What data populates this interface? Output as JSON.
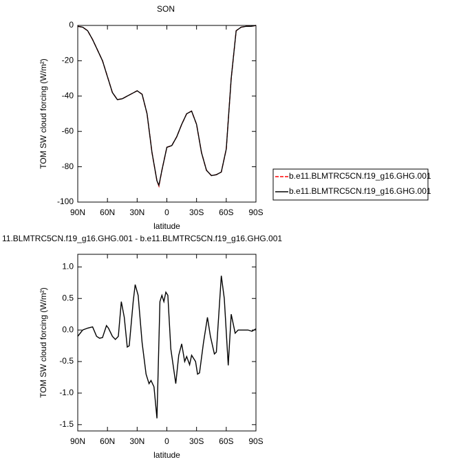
{
  "chart_data": [
    {
      "type": "line",
      "title": "SON",
      "xlabel": "latitude",
      "ylabel": "TOM SW cloud forcing (W/m²)",
      "x": [
        90,
        85,
        80,
        75,
        70,
        65,
        60,
        55,
        50,
        45,
        40,
        35,
        30,
        25,
        20,
        15,
        10,
        8,
        5,
        0,
        -5,
        -10,
        -15,
        -20,
        -25,
        -30,
        -35,
        -40,
        -45,
        -50,
        -55,
        -60,
        -65,
        -70,
        -75,
        -80,
        -85,
        -90
      ],
      "series": [
        {
          "name": "b.e11.BLMTRC5CN.f19_g16.GHG.001",
          "color": "#ff0000",
          "dashed": true,
          "values": [
            -0.5,
            -1,
            -3,
            -8,
            -14,
            -20,
            -29,
            -38,
            -42,
            -41.5,
            -40,
            -38.5,
            -37,
            -39,
            -50,
            -72,
            -88,
            -91,
            -82,
            -69,
            -68,
            -63,
            -56,
            -50,
            -48.5,
            -56,
            -72,
            -82,
            -85,
            -84.5,
            -83,
            -70,
            -30,
            -3,
            -1,
            -0.5,
            -0.5,
            0
          ]
        },
        {
          "name": "b.e11.BLMTRC5CN.f19_g16.GHG.001",
          "color": "#000000",
          "dashed": false,
          "values": [
            -0.5,
            -1,
            -3,
            -8,
            -14,
            -20,
            -29,
            -38,
            -42,
            -41.5,
            -40,
            -38.5,
            -37,
            -39,
            -50,
            -72,
            -88,
            -90.5,
            -82,
            -69,
            -68,
            -63,
            -56,
            -50,
            -48.5,
            -56,
            -72,
            -82,
            -85,
            -84.5,
            -83,
            -70,
            -30,
            -3,
            -1,
            -0.5,
            -0.5,
            0
          ]
        }
      ],
      "xlim": [
        90,
        -90
      ],
      "xticks": [
        {
          "value": 90,
          "label": "90N"
        },
        {
          "value": 60,
          "label": "60N"
        },
        {
          "value": 30,
          "label": "30N"
        },
        0,
        {
          "value": -30,
          "label": "30S"
        },
        {
          "value": -60,
          "label": "60S"
        },
        {
          "value": -90,
          "label": "90S"
        }
      ],
      "ylim": [
        -100,
        0
      ],
      "yticks": [
        0,
        -20,
        -40,
        -60,
        -80,
        -100
      ],
      "legend": "right"
    },
    {
      "type": "line",
      "title": "11.BLMTRC5CN.f19_g16.GHG.001 - b.e11.BLMTRC5CN.f19_g16.GHG.001",
      "xlabel": "latitude",
      "ylabel": "TOM SW cloud forcing (W/m²)",
      "x": [
        90,
        85,
        80,
        75,
        71,
        68,
        65,
        61,
        59,
        55,
        52,
        49,
        46,
        43,
        40,
        38,
        34,
        32,
        29,
        25,
        21,
        18,
        16,
        13,
        10,
        7,
        5,
        3,
        1,
        -1,
        -4,
        -9,
        -12,
        -15,
        -18,
        -20,
        -23,
        -25,
        -29,
        -31,
        -33,
        -37,
        -41,
        -44,
        -48,
        -50,
        -55,
        -58,
        -62,
        -65,
        -69,
        -72,
        -82,
        -86,
        -90
      ],
      "series": [
        {
          "name": null,
          "color": "#000000",
          "dashed": false,
          "values": [
            -0.1,
            0.0,
            0.03,
            0.05,
            -0.1,
            -0.13,
            -0.12,
            0.07,
            0.03,
            -0.1,
            -0.15,
            -0.1,
            0.45,
            0.2,
            -0.27,
            -0.25,
            0.45,
            0.72,
            0.55,
            -0.2,
            -0.7,
            -0.85,
            -0.8,
            -0.9,
            -1.4,
            0.45,
            0.55,
            0.45,
            0.6,
            0.55,
            -0.3,
            -0.85,
            -0.4,
            -0.22,
            -0.5,
            -0.42,
            -0.55,
            -0.4,
            -0.5,
            -0.7,
            -0.68,
            -0.2,
            0.2,
            -0.1,
            -0.38,
            -0.35,
            0.86,
            0.5,
            -0.56,
            0.25,
            -0.05,
            0.0,
            0.0,
            -0.02,
            0.02
          ]
        }
      ],
      "xlim": [
        90,
        -90
      ],
      "xticks": [
        {
          "value": 90,
          "label": "90N"
        },
        {
          "value": 60,
          "label": "60N"
        },
        {
          "value": 30,
          "label": "30N"
        },
        0,
        {
          "value": -30,
          "label": "30S"
        },
        {
          "value": -60,
          "label": "60S"
        },
        {
          "value": -90,
          "label": "90S"
        }
      ],
      "ylim": [
        -1.6,
        1.2
      ],
      "yticks": [
        {
          "value": 1.0,
          "label": "1.0"
        },
        0.5,
        {
          "value": 0,
          "label": "0.0"
        },
        -0.5,
        {
          "value": -1.0,
          "label": "-1.0"
        },
        -1.5
      ]
    }
  ]
}
